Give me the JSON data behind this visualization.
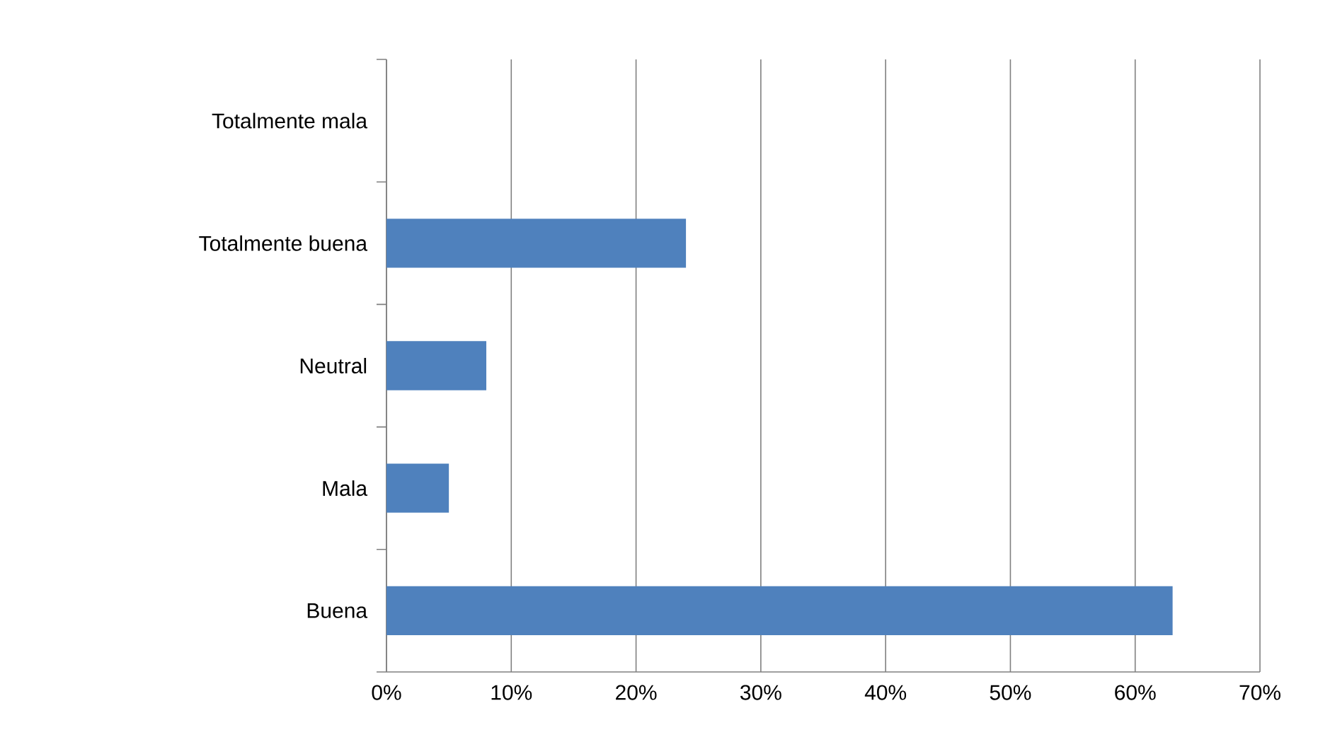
{
  "chart_data": {
    "type": "bar",
    "orientation": "horizontal",
    "categories": [
      "Totalmente mala",
      "Totalmente buena",
      "Neutral",
      "Mala",
      "Buena"
    ],
    "values": [
      0,
      24,
      8,
      5,
      63
    ],
    "color": "#4f81bd",
    "xlim": [
      0,
      70
    ],
    "xticks": [
      {
        "value": 0,
        "label": "0%"
      },
      {
        "value": 10,
        "label": "10%"
      },
      {
        "value": 20,
        "label": "20%"
      },
      {
        "value": 30,
        "label": "30%"
      },
      {
        "value": 40,
        "label": "40%"
      },
      {
        "value": 50,
        "label": "50%"
      },
      {
        "value": 60,
        "label": "60%"
      },
      {
        "value": 70,
        "label": "70%"
      }
    ],
    "grid": "x"
  }
}
